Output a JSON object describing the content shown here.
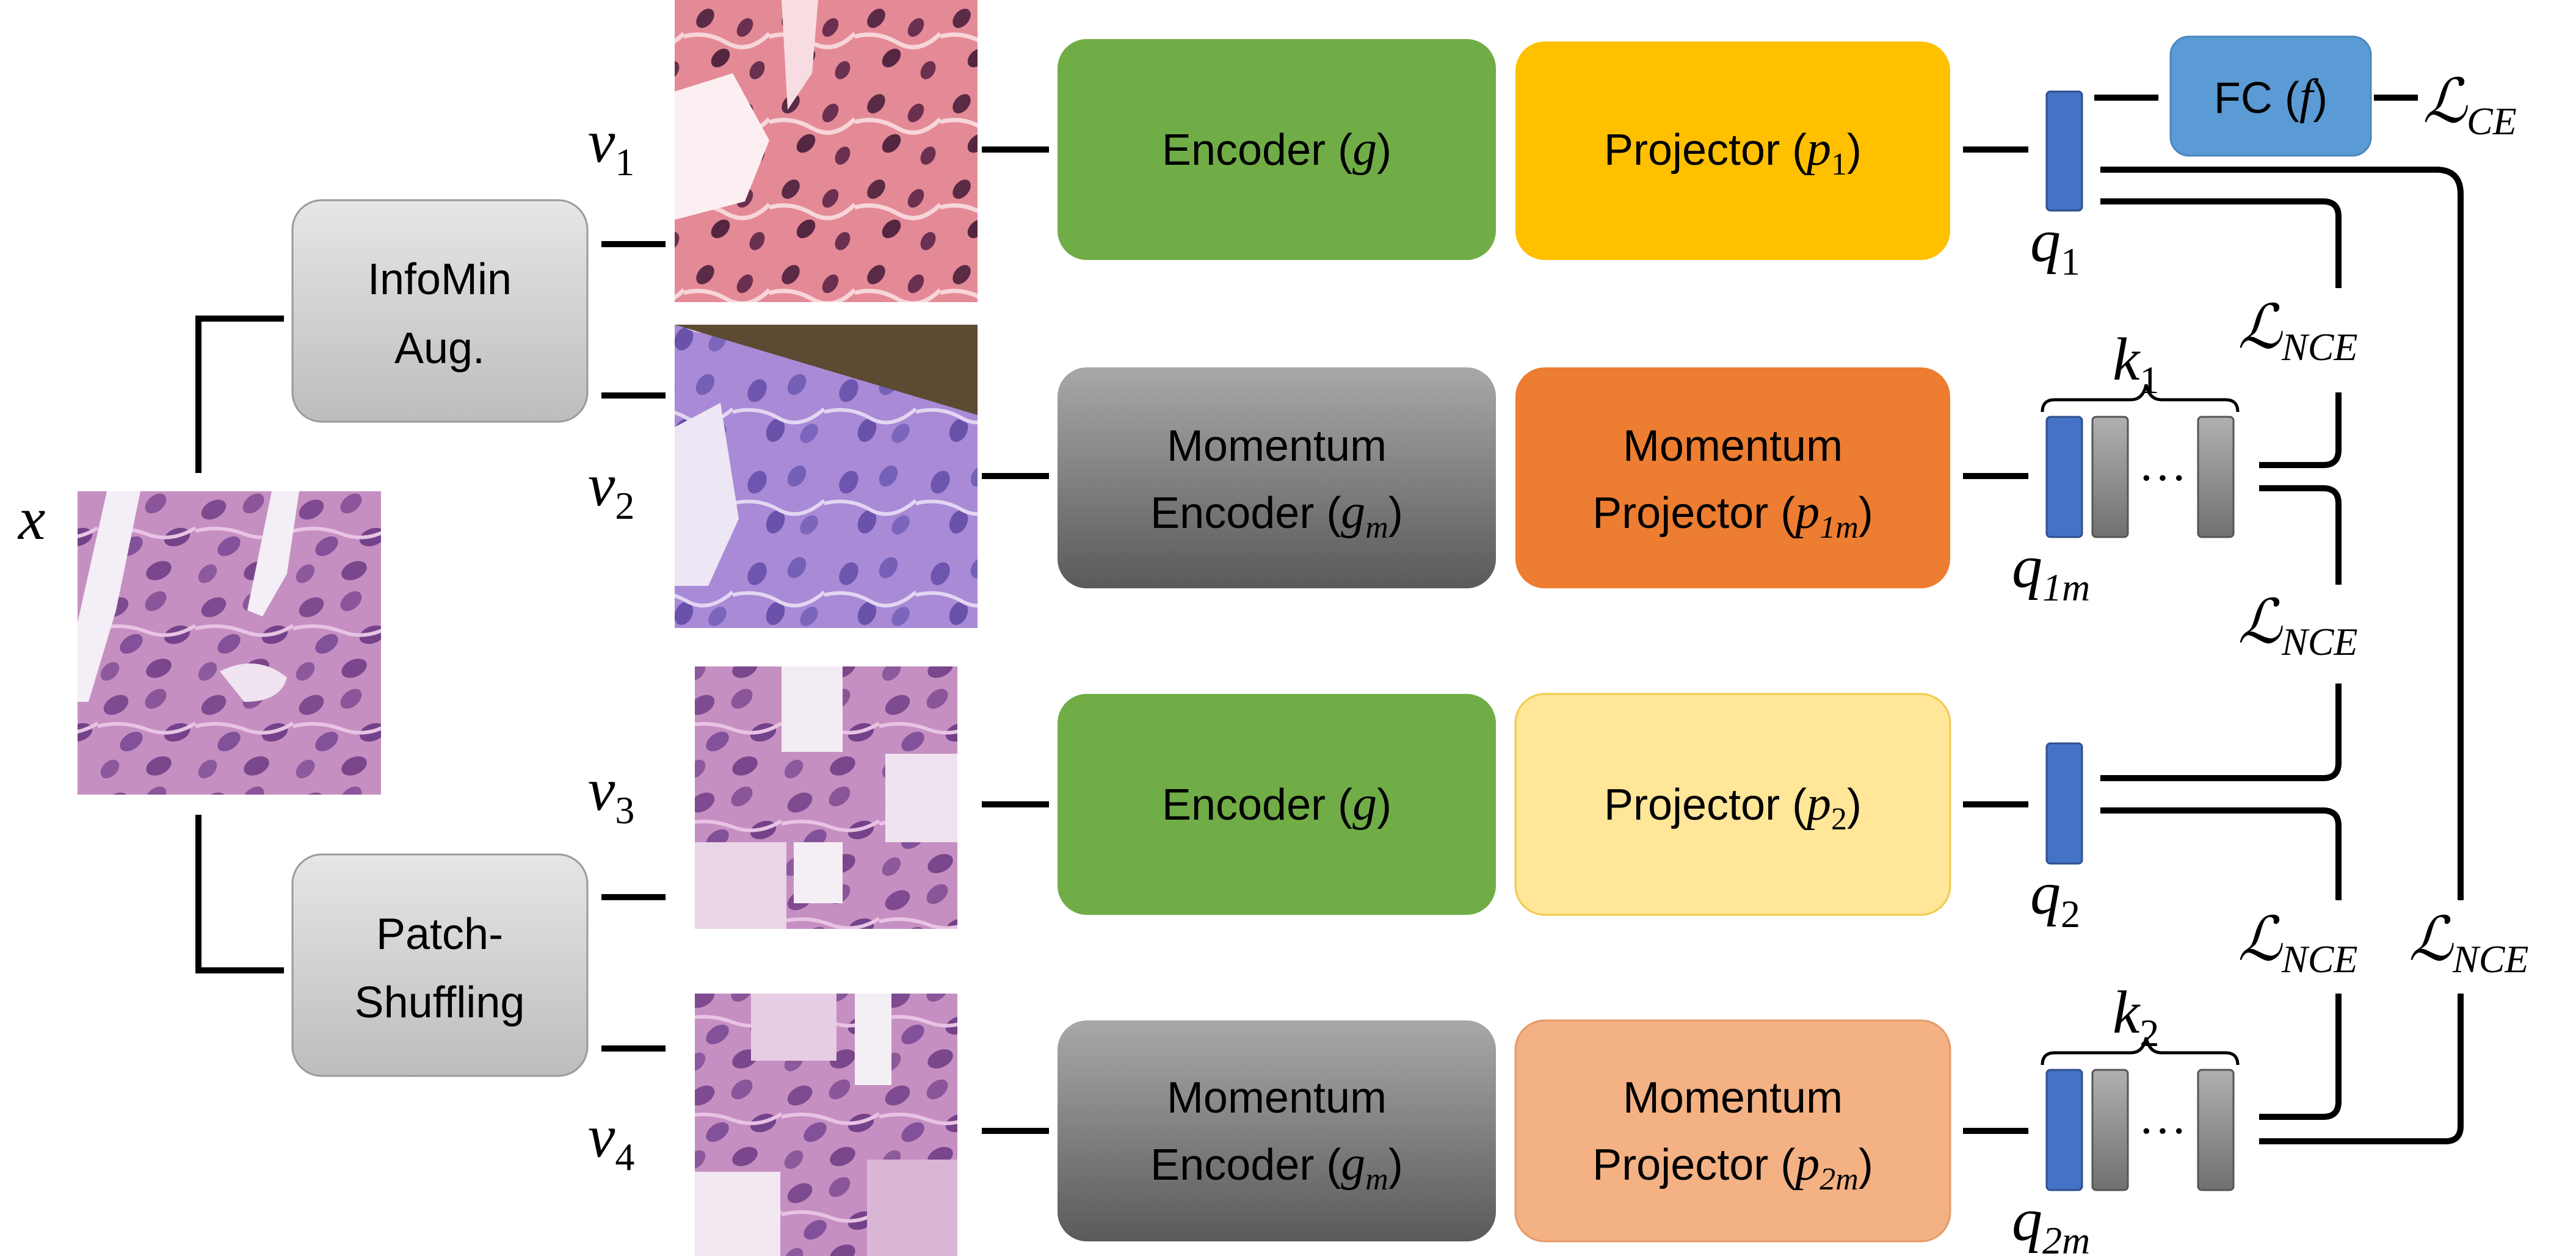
{
  "input_label": "x",
  "aug": {
    "infomin_line1": "InfoMin",
    "infomin_line2": "Aug.",
    "patch_line1": "Patch-",
    "patch_line2": "Shuffling"
  },
  "views": {
    "v1": {
      "base": "v",
      "sub": "1"
    },
    "v2": {
      "base": "v",
      "sub": "2"
    },
    "v3": {
      "base": "v",
      "sub": "3"
    },
    "v4": {
      "base": "v",
      "sub": "4"
    }
  },
  "encoders": {
    "row1": {
      "line1": "Encoder (",
      "sym": "g",
      "close": ")"
    },
    "row2": {
      "line1": "Momentum",
      "line2": "Encoder (",
      "sym": "g",
      "sub": "m",
      "close": ")"
    },
    "row3": {
      "line1": "Encoder (",
      "sym": "g",
      "close": ")"
    },
    "row4": {
      "line1": "Momentum",
      "line2": "Encoder (",
      "sym": "g",
      "sub": "m",
      "close": ")"
    }
  },
  "projectors": {
    "row1": {
      "line1": "Projector (",
      "sym": "p",
      "sub": "1",
      "close": ")"
    },
    "row2": {
      "line1": "Momentum",
      "line2": "Projector (",
      "sym": "p",
      "sub": "1m",
      "close": ")"
    },
    "row3": {
      "line1": "Projector (",
      "sym": "p",
      "sub": "2",
      "close": ")"
    },
    "row4": {
      "line1": "Momentum",
      "line2": "Projector (",
      "sym": "p",
      "sub": "2m",
      "close": ")"
    }
  },
  "queries": {
    "q1": {
      "base": "q",
      "sub": "1"
    },
    "q1m": {
      "base": "q",
      "sub": "1m"
    },
    "q2": {
      "base": "q",
      "sub": "2"
    },
    "q2m": {
      "base": "q",
      "sub": "2m"
    }
  },
  "queues": {
    "k1": {
      "base": "k",
      "sub": "1"
    },
    "k2": {
      "base": "k",
      "sub": "2"
    },
    "dots": "···"
  },
  "fc": {
    "text": "FC (",
    "sym": "f",
    "close": ")"
  },
  "losses": {
    "ce": {
      "base": "ℒ",
      "sub": "CE"
    },
    "nce": {
      "base": "ℒ",
      "sub": "NCE"
    }
  },
  "colors": {
    "encoder_green": "#70AD47",
    "momentum_gray_top": "#a6a6a6",
    "momentum_gray_bottom": "#595959",
    "projector1_yellow": "#FFC000",
    "projector1m_orange": "#ED7D31",
    "projector2_lightyellow": "#FFE699",
    "projector2m_salmon": "#F4B183",
    "aug_gray": "#d0d0d0",
    "fc_blue": "#5B9BD5",
    "query_blue": "#4472C4",
    "queue_gray": "#8c8c8c"
  }
}
